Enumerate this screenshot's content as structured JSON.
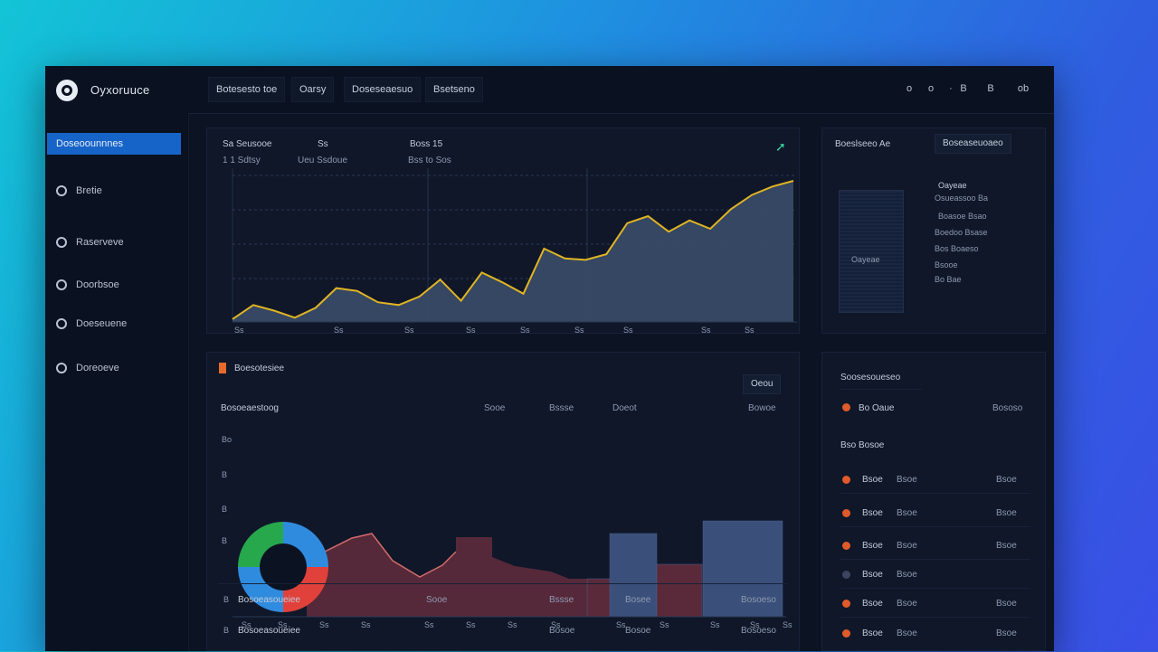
{
  "app": {
    "title": "Oyxoruuce"
  },
  "nav_tabs": [
    "Botesesto toe",
    "Oarsy",
    "Doseseaesuo",
    "Bsetseno"
  ],
  "top_icons": [
    "o",
    "o",
    "·",
    "B",
    "B",
    "ob"
  ],
  "sidebar": {
    "items": [
      {
        "label": "Doseoounnnes",
        "icon": "dashboard-icon",
        "active": true
      },
      {
        "label": "Bretie",
        "icon": "refresh-icon",
        "active": false
      },
      {
        "label": "Raserveve",
        "icon": "settings-icon",
        "active": false
      },
      {
        "label": "Doorbsoe",
        "icon": "clock-icon",
        "active": false
      },
      {
        "label": "Doeseuene",
        "icon": "gauge-icon",
        "active": false
      },
      {
        "label": "Doreoeve",
        "icon": "help-icon",
        "active": false
      }
    ]
  },
  "main_chart": {
    "stats": [
      {
        "title": "Sa Seusooe",
        "value": "1 1 Sdtsy"
      },
      {
        "title": "Ss",
        "value": "Ueu Ssdoue"
      },
      {
        "title": "Boss 15",
        "value": "Bss to Sos"
      }
    ],
    "x_ticks": [
      "Ss",
      "Ss",
      "Ss",
      "Ss",
      "Ss",
      "Ss",
      "Ss",
      "Ss",
      "Ss"
    ],
    "colors": {
      "line": "#e0b423",
      "fill": "#3a4d68"
    }
  },
  "chart_data": {
    "type": "area",
    "x": [
      0,
      1,
      2,
      3,
      4,
      5,
      6,
      7,
      8,
      9,
      10,
      11,
      12,
      13,
      14,
      15,
      16,
      17,
      18,
      19,
      20,
      21,
      22,
      23,
      24,
      25,
      26,
      27
    ],
    "series": [
      {
        "values": [
          2,
          12,
          8,
          3,
          10,
          24,
          22,
          14,
          12,
          18,
          30,
          15,
          35,
          28,
          20,
          52,
          45,
          44,
          48,
          70,
          75,
          64,
          72,
          66,
          80,
          90,
          96,
          100
        ]
      }
    ],
    "ylim": [
      0,
      100
    ],
    "grid": true
  },
  "right_top": {
    "tabs": [
      "Boeslseeo  Ae",
      "Boseaseuoaeo"
    ],
    "list": [
      "Oayeae",
      "Osueassoo  Ba",
      "Boasoe  Bsao",
      "Boedoo  Bsase",
      "Bos  Boaeso",
      "Bsooe",
      "Bo  Bae"
    ]
  },
  "bottom_chart": {
    "title": "Boesotesiee",
    "button": "Oeou",
    "col_headers": [
      "Bosoeaestoog",
      "Sooe",
      "Bssse",
      "Doeot",
      "Bowoe"
    ],
    "y_ticks": [
      "Bo",
      "B",
      "B",
      "B"
    ],
    "x_ticks": [
      "Ss",
      "Ss",
      "Ss",
      "Ss",
      "Ss",
      "Ss",
      "Ss",
      "Ss",
      "Ss",
      "Ss",
      "Ss",
      "Ss",
      "Ss"
    ],
    "donut_colors": [
      "#2f8bde",
      "#e0413a",
      "#27a84d"
    ],
    "area_color": "#5a2a3a",
    "bar_color": "#3a4f7a"
  },
  "table": {
    "rows": [
      {
        "name": "Bosoeasoueiee",
        "c1": "Sooe",
        "c2": "Bssse",
        "c3": "Bosee",
        "c4": "Bosoeso"
      },
      {
        "name": "Bosoeasoueiee",
        "c1": "",
        "c2": "Bosoe",
        "c3": "Bosoe",
        "c4": "Bosoeso"
      }
    ]
  },
  "right_bottom": {
    "title": "Soosesoueseo",
    "header": {
      "name": "Bo Oaue",
      "value": "Bososo"
    },
    "section": "Bso Bosoe",
    "rows": [
      {
        "a": "Bsoe",
        "b": "Bsoe",
        "value": "Bsoe",
        "color": "#e05a2a"
      },
      {
        "a": "Bsoe",
        "b": "Bsoe",
        "value": "Bsoe",
        "color": "#e05a2a"
      },
      {
        "a": "Bsoe",
        "b": "Bsoe",
        "value": "Bsoe",
        "color": "#e05a2a"
      },
      {
        "a": "Bsoe",
        "b": "Bsoe",
        "value": "",
        "color": "#3a4660"
      },
      {
        "a": "Bsoe",
        "b": "Bsoe",
        "value": "Bsoe",
        "color": "#e05a2a"
      },
      {
        "a": "Bsoe",
        "b": "Bsoe",
        "value": "Bsoe",
        "color": "#e05a2a"
      }
    ]
  }
}
